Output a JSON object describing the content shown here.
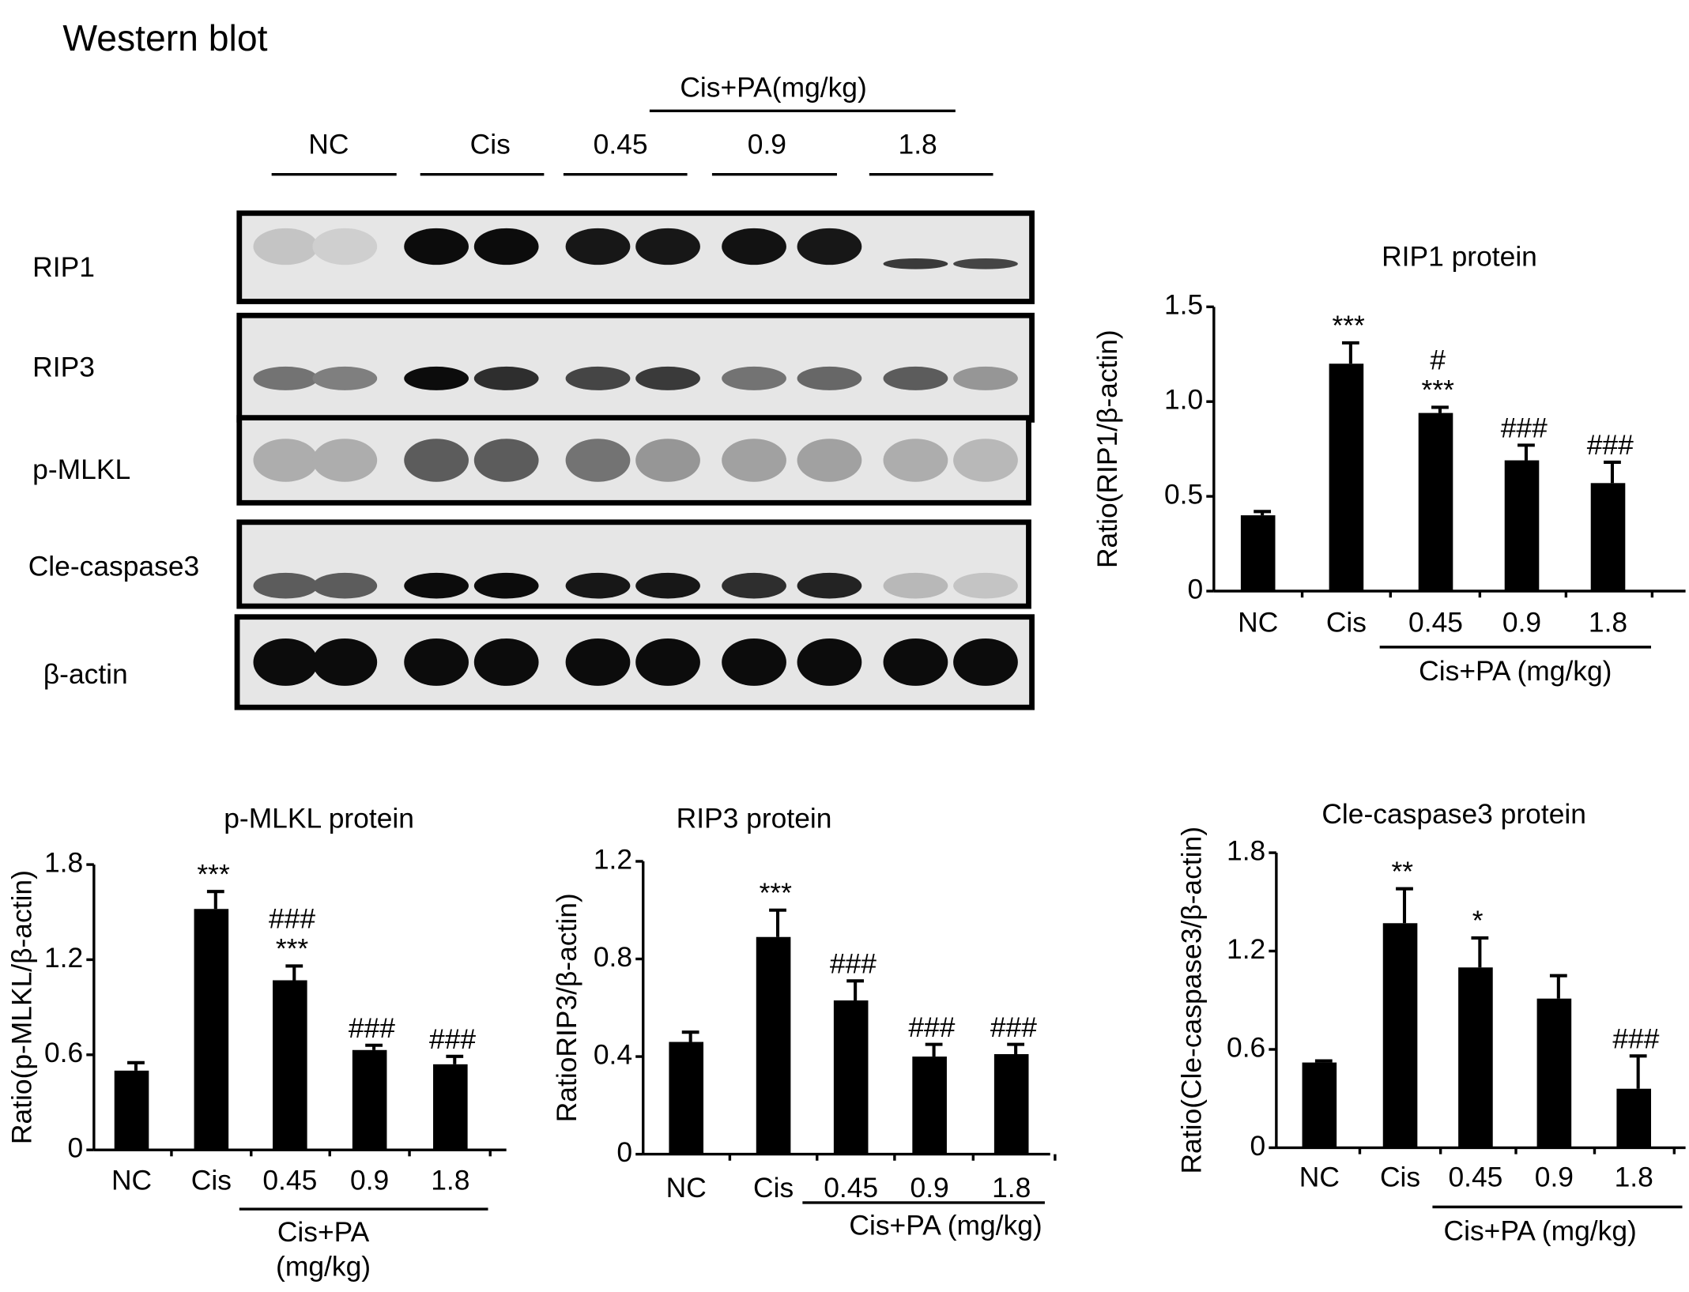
{
  "western_blot": {
    "title": "Western blot",
    "treatment_label": "Cis+PA(mg/kg)",
    "groups": [
      "NC",
      "Cis",
      "0.45",
      "0.9",
      "1.8"
    ],
    "rows": [
      "RIP1",
      "RIP3",
      "p-MLKL",
      "Cle-caspase3",
      "β-actin"
    ]
  },
  "chart_data": [
    {
      "type": "bar",
      "title": "RIP1 protein",
      "y_label": "Ratio(RIP1/β-actin)",
      "categories": [
        "NC",
        "Cis",
        "0.45",
        "0.9",
        "1.8"
      ],
      "values": [
        0.4,
        1.2,
        0.94,
        0.69,
        0.57
      ],
      "errors": [
        0.02,
        0.11,
        0.03,
        0.08,
        0.11
      ],
      "annotations": [
        null,
        [
          "***"
        ],
        [
          "#",
          "***"
        ],
        [
          "###"
        ],
        [
          "###"
        ]
      ],
      "group_label": [
        "Cis+PA (mg/kg)"
      ],
      "color": "#000000",
      "ylim": [
        0,
        1.5
      ],
      "yticks": [
        0,
        0.5,
        {
          "value": 1,
          "label": "1.0"
        },
        1.5
      ]
    },
    {
      "type": "bar",
      "title": "p-MLKL protein",
      "y_label": "Ratio(p-MLKL/β-actin)",
      "categories": [
        "NC",
        "Cis",
        "0.45",
        "0.9",
        "1.8"
      ],
      "values": [
        0.5,
        1.52,
        1.07,
        0.63,
        0.54
      ],
      "errors": [
        0.05,
        0.11,
        0.09,
        0.03,
        0.05
      ],
      "annotations": [
        null,
        [
          "***"
        ],
        [
          "###",
          "***"
        ],
        [
          "###"
        ],
        [
          "###"
        ]
      ],
      "group_label": [
        "Cis+PA",
        "(mg/kg)"
      ],
      "color": "#000000",
      "ylim": [
        0,
        1.8
      ],
      "yticks": [
        0,
        0.6,
        1.2,
        1.8
      ]
    },
    {
      "type": "bar",
      "title": "RIP3 protein",
      "y_label": "RatioRIP3/β-actin)",
      "categories": [
        "NC",
        "Cis",
        "0.45",
        "0.9",
        "1.8"
      ],
      "values": [
        0.46,
        0.89,
        0.63,
        0.4,
        0.41
      ],
      "errors": [
        0.04,
        0.11,
        0.08,
        0.05,
        0.04
      ],
      "annotations": [
        null,
        [
          "***"
        ],
        [
          "###"
        ],
        [
          "###"
        ],
        [
          "###"
        ]
      ],
      "group_label": [
        "Cis+PA (mg/kg)"
      ],
      "color": "#000000",
      "ylim": [
        0,
        1.2
      ],
      "yticks": [
        0,
        0.4,
        0.8,
        1.2
      ]
    },
    {
      "type": "bar",
      "title": "Cle-caspase3 protein",
      "y_label": "Ratio(Cle-caspase3/β-actin)",
      "categories": [
        "NC",
        "Cis",
        "0.45",
        "0.9",
        "1.8"
      ],
      "values": [
        0.52,
        1.37,
        1.1,
        0.91,
        0.36
      ],
      "errors": [
        0.01,
        0.21,
        0.18,
        0.14,
        0.2
      ],
      "annotations": [
        null,
        [
          "**"
        ],
        [
          "*"
        ],
        null,
        [
          "###"
        ]
      ],
      "group_label": [
        "Cis+PA (mg/kg)"
      ],
      "color": "#000000",
      "ylim": [
        0,
        1.8
      ],
      "yticks": [
        0,
        0.6,
        1.2,
        1.8
      ]
    }
  ]
}
